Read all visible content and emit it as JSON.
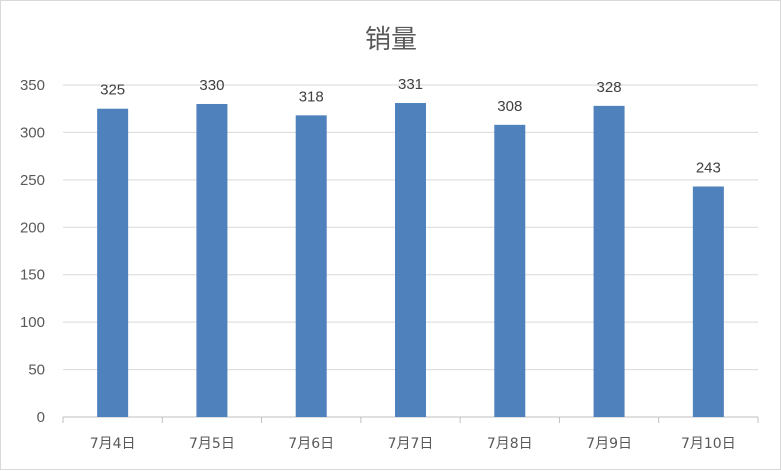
{
  "chart_data": {
    "type": "bar",
    "title": "销量",
    "categories": [
      "7月4日",
      "7月5日",
      "7月6日",
      "7月7日",
      "7月8日",
      "7月9日",
      "7月10日"
    ],
    "values": [
      325,
      330,
      318,
      331,
      308,
      328,
      243
    ],
    "ylim": [
      0,
      350
    ],
    "yticks": [
      0,
      50,
      100,
      150,
      200,
      250,
      300,
      350
    ],
    "grid": true,
    "legend": "none",
    "data_labels": true,
    "bar_color": "#4f81bd"
  }
}
